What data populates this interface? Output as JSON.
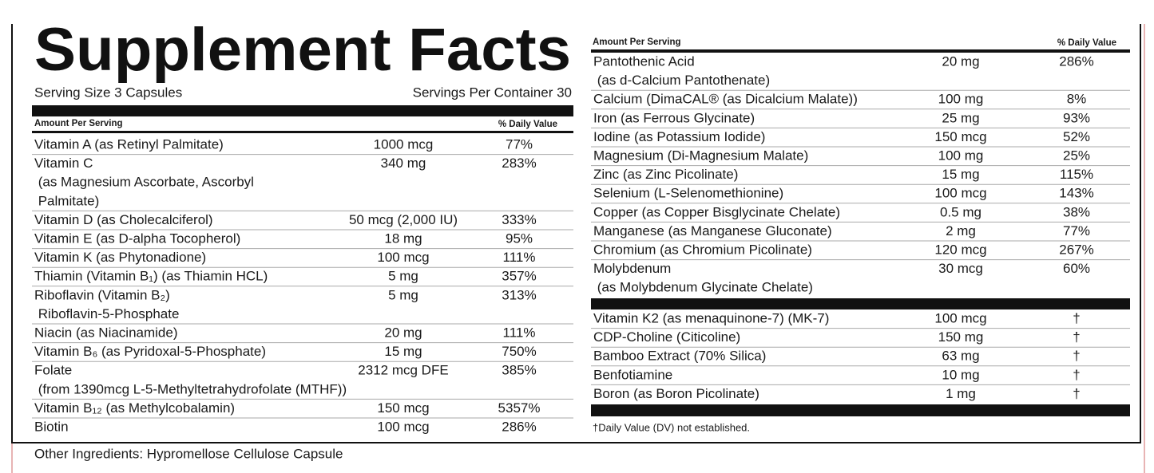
{
  "title": "Supplement Facts",
  "serving_size": "Serving Size 3 Capsules",
  "servings_per_container": "Servings Per Container 30",
  "left_table": {
    "header": [
      "Amount Per Serving",
      "% Daily Value"
    ],
    "rows": [
      {
        "name": [
          "Vitamin A (as Retinyl Palmitate)"
        ],
        "amount": "1000 mcg",
        "dv": "77%"
      },
      {
        "name": [
          "Vitamin C",
          " (as Magnesium Ascorbate, Ascorbyl",
          " Palmitate)"
        ],
        "amount": "340 mg",
        "dv": "283%"
      },
      {
        "name": [
          "Vitamin D (as Cholecalciferol)"
        ],
        "amount": "50 mcg (2,000 IU)",
        "dv": "333%"
      },
      {
        "name": [
          "Vitamin E (as D-alpha Tocopherol)"
        ],
        "amount": "18 mg",
        "dv": "95%"
      },
      {
        "name": [
          "Vitamin K (as Phytonadione)"
        ],
        "amount": "100 mcg",
        "dv": "111%"
      },
      {
        "name": [
          "Thiamin (Vitamin B₁) (as Thiamin HCL)"
        ],
        "amount": "5 mg",
        "dv": "357%"
      },
      {
        "name": [
          "Riboflavin (Vitamin B₂)",
          " Riboflavin-5-Phosphate"
        ],
        "amount": "5 mg",
        "dv": "313%"
      },
      {
        "name": [
          "Niacin (as Niacinamide)"
        ],
        "amount": "20 mg",
        "dv": "111%"
      },
      {
        "name": [
          "Vitamin B₆ (as Pyridoxal-5-Phosphate)"
        ],
        "amount": "15 mg",
        "dv": "750%"
      },
      {
        "name": [
          "Folate",
          " (from 1390mcg L-5-Methyltetrahydrofolate (MTHF))"
        ],
        "amount": "2312 mcg DFE",
        "dv": "385%"
      },
      {
        "name": [
          "Vitamin B₁₂ (as Methylcobalamin)"
        ],
        "amount": "150 mcg",
        "dv": "5357%"
      },
      {
        "name": [
          "Biotin"
        ],
        "amount": "100 mcg",
        "dv": "286%"
      }
    ]
  },
  "right_table": {
    "header": [
      "Amount Per Serving",
      "% Daily Value"
    ],
    "rows": [
      {
        "name": [
          "Pantothenic Acid",
          " (as d-Calcium Pantothenate)"
        ],
        "amount": "20 mg",
        "dv": "286%"
      },
      {
        "name": [
          "Calcium (DimaCAL® (as Dicalcium Malate))"
        ],
        "amount": "100 mg",
        "dv": "8%"
      },
      {
        "name": [
          "Iron (as Ferrous Glycinate)"
        ],
        "amount": "25 mg",
        "dv": "93%"
      },
      {
        "name": [
          "Iodine (as Potassium Iodide)"
        ],
        "amount": "150 mcg",
        "dv": "52%"
      },
      {
        "name": [
          "Magnesium (Di-Magnesium Malate)"
        ],
        "amount": "100 mg",
        "dv": "25%"
      },
      {
        "name": [
          "Zinc (as Zinc Picolinate)"
        ],
        "amount": "15 mg",
        "dv": "115%"
      },
      {
        "name": [
          "Selenium (L-Selenomethionine)"
        ],
        "amount": "100 mcg",
        "dv": "143%"
      },
      {
        "name": [
          "Copper (as Copper Bisglycinate Chelate)"
        ],
        "amount": "0.5 mg",
        "dv": "38%"
      },
      {
        "name": [
          "Manganese (as Manganese Gluconate)"
        ],
        "amount": "2 mg",
        "dv": "77%"
      },
      {
        "name": [
          "Chromium (as Chromium Picolinate)"
        ],
        "amount": "120 mcg",
        "dv": "267%"
      },
      {
        "name": [
          "Molybdenum",
          " (as Molybdenum Glycinate Chelate)"
        ],
        "amount": "30 mcg",
        "dv": "60%"
      }
    ],
    "other_rows": [
      {
        "name": [
          "Vitamin K2 (as menaquinone-7) (MK-7)"
        ],
        "amount": "100 mcg",
        "dv": "†"
      },
      {
        "name": [
          "CDP-Choline (Citicoline)"
        ],
        "amount": "150 mg",
        "dv": "†"
      },
      {
        "name": [
          "Bamboo Extract (70% Silica)"
        ],
        "amount": "63 mg",
        "dv": "†"
      },
      {
        "name": [
          "Benfotiamine"
        ],
        "amount": "10 mg",
        "dv": "†"
      },
      {
        "name": [
          "Boron (as Boron Picolinate)"
        ],
        "amount": "1 mg",
        "dv": "†"
      }
    ],
    "footnote": "†Daily Value (DV) not established."
  },
  "other_ingredients": "Other Ingredients: Hypromellose Cellulose Capsule"
}
